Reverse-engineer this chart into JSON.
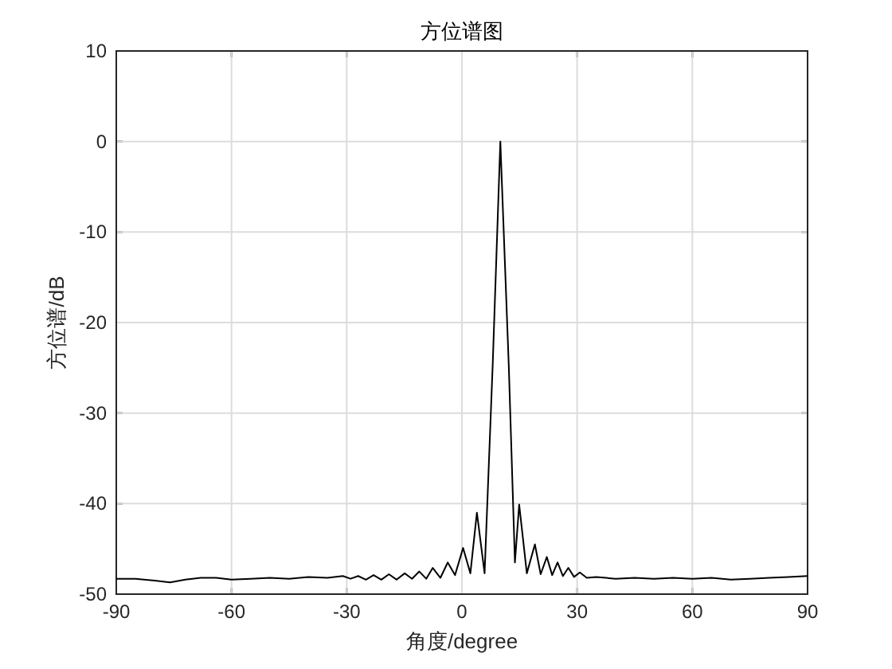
{
  "chart_data": {
    "type": "line",
    "title": "方位谱图",
    "xlabel": "角度/degree",
    "ylabel": "方位谱/dB",
    "xlim": [
      -90,
      90
    ],
    "xticks": [
      -90,
      -60,
      -30,
      0,
      30,
      60,
      90
    ],
    "ylim": [
      -50,
      10
    ],
    "yticks": [
      -50,
      -40,
      -30,
      -20,
      -10,
      0,
      10
    ],
    "grid": true,
    "series": [
      {
        "color": "#000000",
        "x": [
          -90,
          -85,
          -80,
          -76,
          -72,
          -68,
          -64,
          -60,
          -55,
          -50,
          -45,
          -40,
          -35,
          -31,
          -29,
          -27,
          -25,
          -23,
          -21,
          -19,
          -17,
          -14.9,
          -13,
          -11.1,
          -9.3,
          -7.6,
          -5.6,
          -3.7,
          -1.8,
          0.3,
          2.2,
          3.9,
          5.9,
          8.0,
          10.0,
          12.2,
          13.8,
          14.9,
          16.9,
          19.0,
          20.5,
          22.1,
          23.5,
          24.9,
          26.3,
          27.7,
          29.2,
          30.7,
          32.5,
          35,
          40,
          45,
          50,
          55,
          60,
          65,
          70,
          75,
          80,
          85,
          90
        ],
        "values": [
          -48.3,
          -48.3,
          -48.5,
          -48.7,
          -48.4,
          -48.2,
          -48.2,
          -48.4,
          -48.3,
          -48.2,
          -48.3,
          -48.1,
          -48.2,
          -48.0,
          -48.3,
          -48.0,
          -48.4,
          -47.9,
          -48.4,
          -47.8,
          -48.4,
          -47.7,
          -48.3,
          -47.5,
          -48.3,
          -47.1,
          -48.2,
          -46.5,
          -47.9,
          -44.9,
          -47.7,
          -41.0,
          -47.7,
          -24.8,
          0,
          -24.8,
          -46.5,
          -40.1,
          -47.7,
          -44.5,
          -47.8,
          -45.9,
          -47.9,
          -46.5,
          -48.0,
          -47.1,
          -48.1,
          -47.6,
          -48.2,
          -48.1,
          -48.3,
          -48.2,
          -48.3,
          -48.2,
          -48.3,
          -48.2,
          -48.4,
          -48.3,
          -48.2,
          -48.1,
          -48.0
        ]
      }
    ]
  }
}
